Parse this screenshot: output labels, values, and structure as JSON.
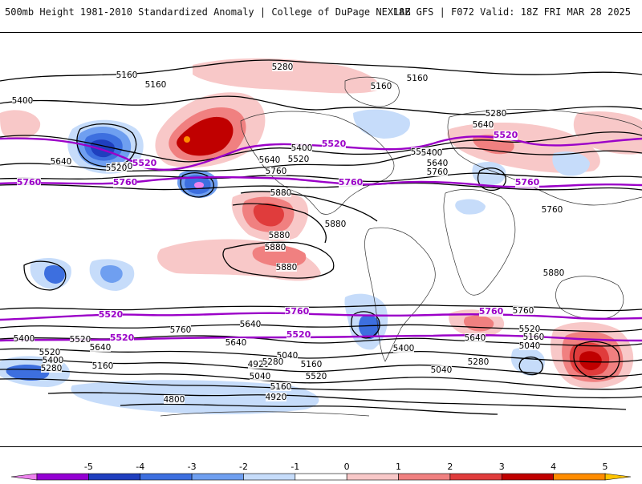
{
  "header": {
    "title": "500mb Height 1981-2010 Standardized Anomaly | College of DuPage NEXLAB",
    "run_info": "18Z GFS | F072 Valid: 18Z FRI MAR 28 2025"
  },
  "contour_labels_black": [
    "5160",
    "5280",
    "5160",
    "5160",
    "5160",
    "5400",
    "5640",
    "5160",
    "5520",
    "5280",
    "5400",
    "5640",
    "5760",
    "5520",
    "5640",
    "5520",
    "5640",
    "5400",
    "5760",
    "5880",
    "5880",
    "5880",
    "5880",
    "5880",
    "5880",
    "5760",
    "5640",
    "5400",
    "5520",
    "5640",
    "5760",
    "5640",
    "5520",
    "5400",
    "5280",
    "5040",
    "4920",
    "5160",
    "4800",
    "5160",
    "5280",
    "5040",
    "4920",
    "5520",
    "5040",
    "5160",
    "5400",
    "5640",
    "5160",
    "5040",
    "5280",
    "5520",
    "5760"
  ],
  "contour_labels_purple": [
    "5520",
    "5520",
    "5520",
    "5760",
    "5760",
    "5760",
    "5760",
    "5760",
    "5760",
    "5520",
    "5520",
    "5520"
  ],
  "colorbar": {
    "ticks": [
      "-5",
      "-4",
      "-3",
      "-2",
      "-1",
      "0",
      "1",
      "2",
      "3",
      "4",
      "5"
    ],
    "colors": [
      "#ee82ee",
      "#9400d3",
      "#1f3fbf",
      "#3d6fdf",
      "#6f9ff0",
      "#c6dcfa",
      "#ffffff",
      "#f8c8c8",
      "#f08080",
      "#e03c3c",
      "#c00000",
      "#ff8c00",
      "#ffc400"
    ]
  }
}
